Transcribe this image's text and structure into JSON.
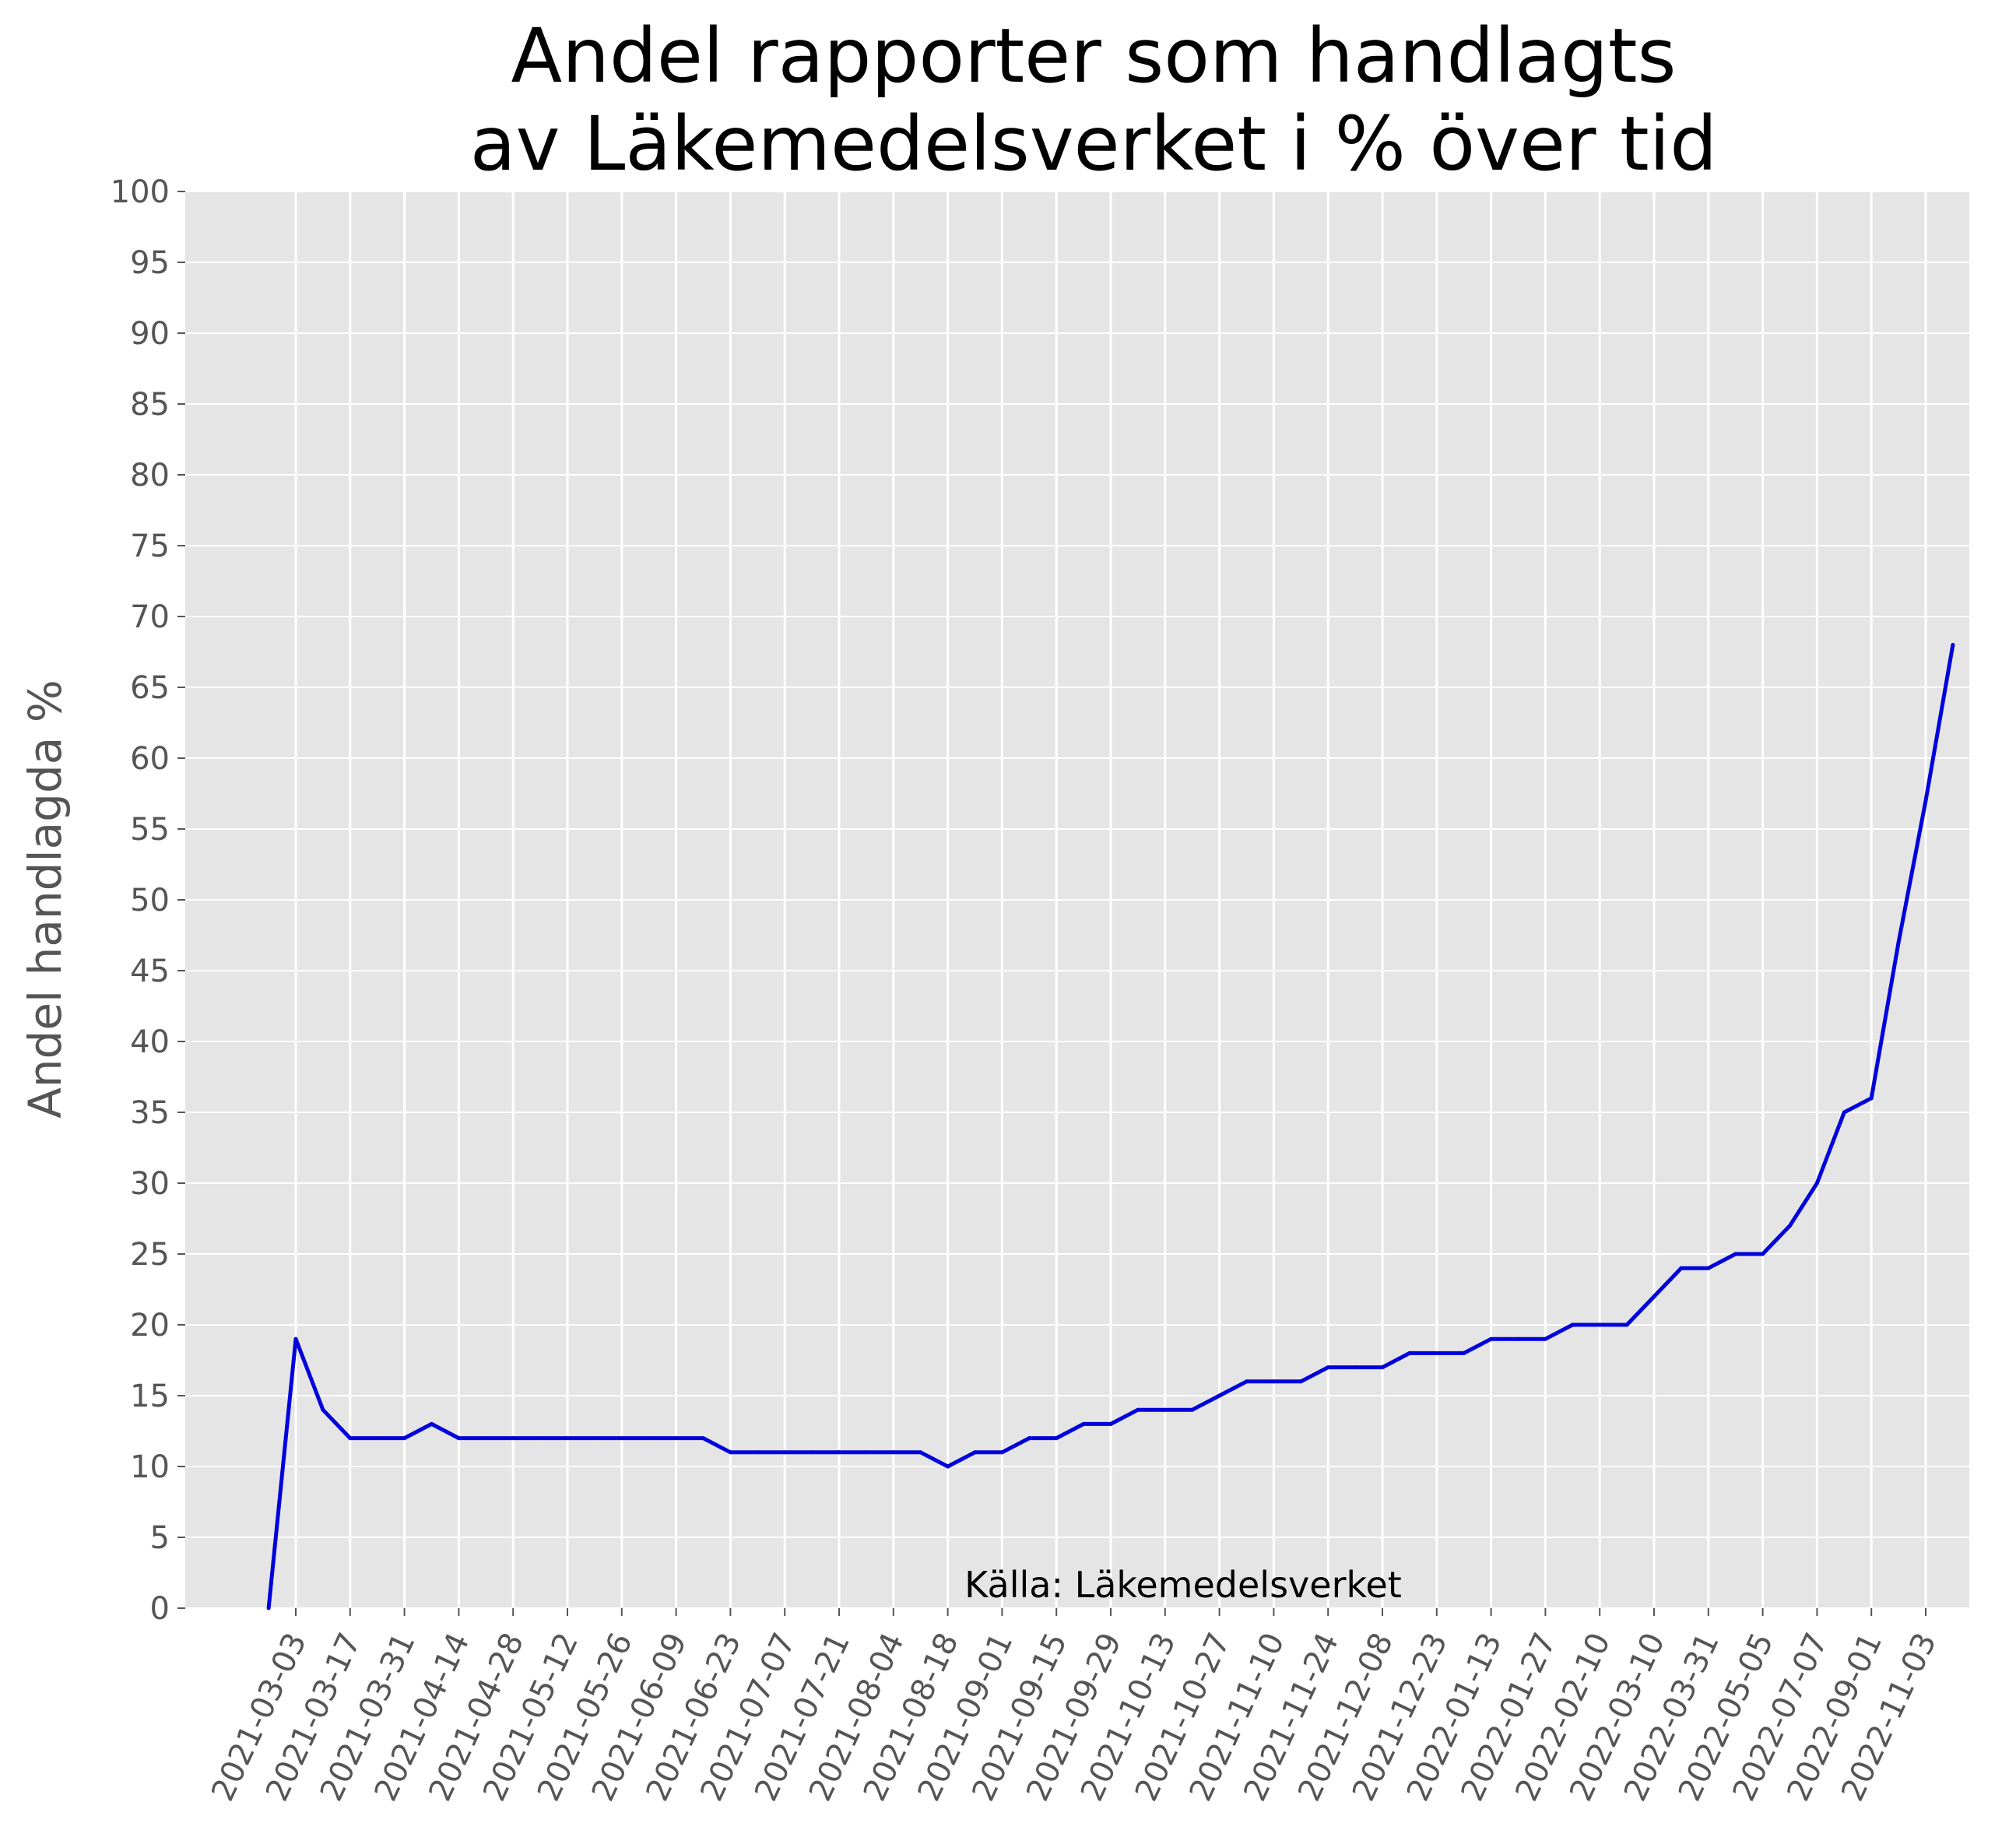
{
  "chart_data": {
    "type": "line",
    "title": [
      "Andel rapporter som handlagts",
      "av Läkemedelsverket i % över tid"
    ],
    "ylabel": "Andel handlagda %",
    "xlabel": "",
    "source": "Källa: Läkemedelsverket",
    "ylim": [
      0,
      100
    ],
    "yticks": [
      0,
      5,
      10,
      15,
      20,
      25,
      30,
      35,
      40,
      45,
      50,
      55,
      60,
      65,
      70,
      75,
      80,
      85,
      90,
      95,
      100
    ],
    "xtick_labels": [
      "2021-03-03",
      "2021-03-17",
      "2021-03-31",
      "2021-04-14",
      "2021-04-28",
      "2021-05-12",
      "2021-05-26",
      "2021-06-09",
      "2021-06-23",
      "2021-07-07",
      "2021-07-21",
      "2021-08-04",
      "2021-08-18",
      "2021-09-01",
      "2021-09-15",
      "2021-09-29",
      "2021-10-13",
      "2021-10-27",
      "2021-11-10",
      "2021-11-24",
      "2021-12-08",
      "2021-12-23",
      "2022-01-13",
      "2022-01-27",
      "2022-02-10",
      "2022-03-10",
      "2022-03-31",
      "2022-05-05",
      "2022-07-07",
      "2022-09-01",
      "2022-11-03"
    ],
    "grid": true,
    "background": "#e5e5e5",
    "line_color": "#0000dd",
    "series": [
      {
        "values": [
          0,
          19,
          14,
          12,
          12,
          12,
          13,
          12,
          12,
          12,
          12,
          12,
          12,
          12,
          12,
          12,
          12,
          11,
          11,
          11,
          11,
          11,
          11,
          11,
          11,
          10,
          11,
          11,
          12,
          12,
          13,
          13,
          14,
          14,
          14,
          15,
          16,
          16,
          16,
          17,
          17,
          17,
          18,
          18,
          18,
          19,
          19,
          19,
          20,
          20,
          20,
          22,
          24,
          24,
          25,
          25,
          27,
          30,
          35,
          36,
          47,
          57,
          68
        ]
      }
    ]
  }
}
